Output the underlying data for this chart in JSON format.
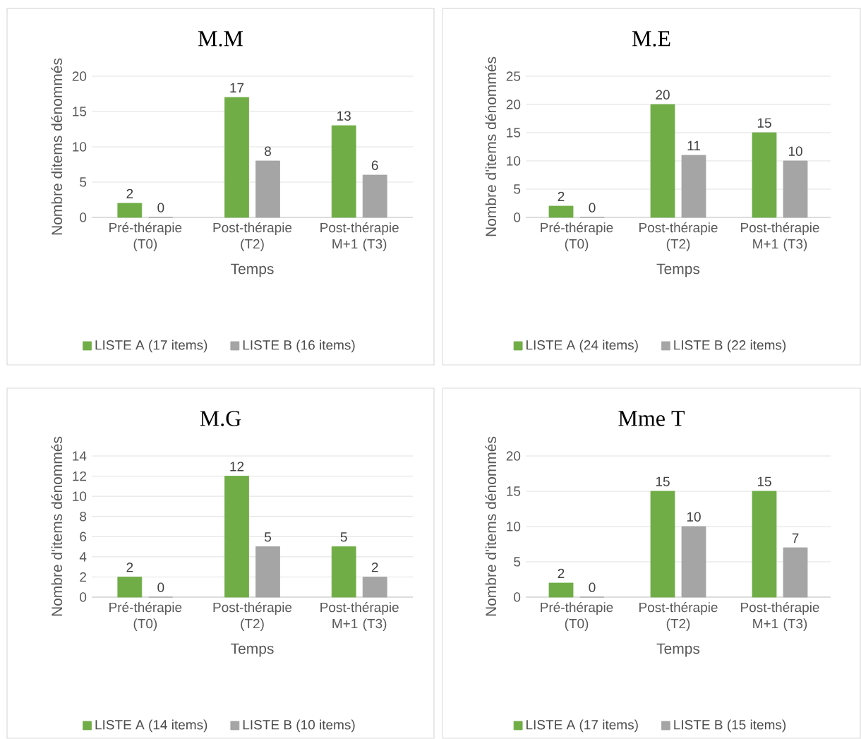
{
  "chart_data": [
    {
      "type": "bar",
      "title": "M.M",
      "xlabel": "Temps",
      "ylabel": "Nombre ditems dénommés",
      "categories": [
        "Pré-thérapie (T0)",
        "Post-thérapie (T2)",
        "Post-thérapie M+1 (T3)"
      ],
      "series": [
        {
          "name": "LISTE A (17 items)",
          "color": "#70ad47",
          "values": [
            2,
            17,
            13
          ]
        },
        {
          "name": "LISTE B (16 items)",
          "color": "#a5a5a5",
          "values": [
            0,
            8,
            6
          ]
        }
      ],
      "ylim": [
        0,
        20
      ],
      "yticks": [
        0,
        5,
        10,
        15,
        20
      ],
      "grid": "y",
      "legend": "bottom",
      "data_labels": true
    },
    {
      "type": "bar",
      "title": "M.E",
      "xlabel": "Temps",
      "ylabel": "Nombre d'items dénommés",
      "categories": [
        "Pré-thérapie (T0)",
        "Post-thérapie (T2)",
        "Post-thérapie M+1 (T3)"
      ],
      "series": [
        {
          "name": "LISTE A (24 items)",
          "color": "#70ad47",
          "values": [
            2,
            20,
            15
          ]
        },
        {
          "name": "LISTE B (22 items)",
          "color": "#a5a5a5",
          "values": [
            0,
            11,
            10
          ]
        }
      ],
      "ylim": [
        0,
        25
      ],
      "yticks": [
        0,
        5,
        10,
        15,
        20,
        25
      ],
      "grid": "y",
      "legend": "bottom",
      "data_labels": true
    },
    {
      "type": "bar",
      "title": "M.G",
      "xlabel": "Temps",
      "ylabel": "Nombre d'items dénommés",
      "categories": [
        "Pré-thérapie (T0)",
        "Post-thérapie (T2)",
        "Post-thérapie M+1 (T3)"
      ],
      "series": [
        {
          "name": "LISTE A (14 items)",
          "color": "#70ad47",
          "values": [
            2,
            12,
            5
          ]
        },
        {
          "name": "LISTE B (10 items)",
          "color": "#a5a5a5",
          "values": [
            0,
            5,
            2
          ]
        }
      ],
      "ylim": [
        0,
        14
      ],
      "yticks": [
        0,
        2,
        4,
        6,
        8,
        10,
        12,
        14
      ],
      "grid": "y",
      "legend": "bottom",
      "data_labels": true
    },
    {
      "type": "bar",
      "title": "Mme T",
      "xlabel": "Temps",
      "ylabel": "Nombre d'items dénommés",
      "categories": [
        "Pré-thérapie (T0)",
        "Post-thérapie (T2)",
        "Post-thérapie M+1 (T3)"
      ],
      "series": [
        {
          "name": "LISTE A (17 items)",
          "color": "#70ad47",
          "values": [
            2,
            15,
            15
          ]
        },
        {
          "name": "LISTE B (15 items)",
          "color": "#a5a5a5",
          "values": [
            0,
            10,
            7
          ]
        }
      ],
      "ylim": [
        0,
        20
      ],
      "yticks": [
        0,
        5,
        10,
        15,
        20
      ],
      "grid": "y",
      "legend": "bottom",
      "data_labels": true
    }
  ]
}
